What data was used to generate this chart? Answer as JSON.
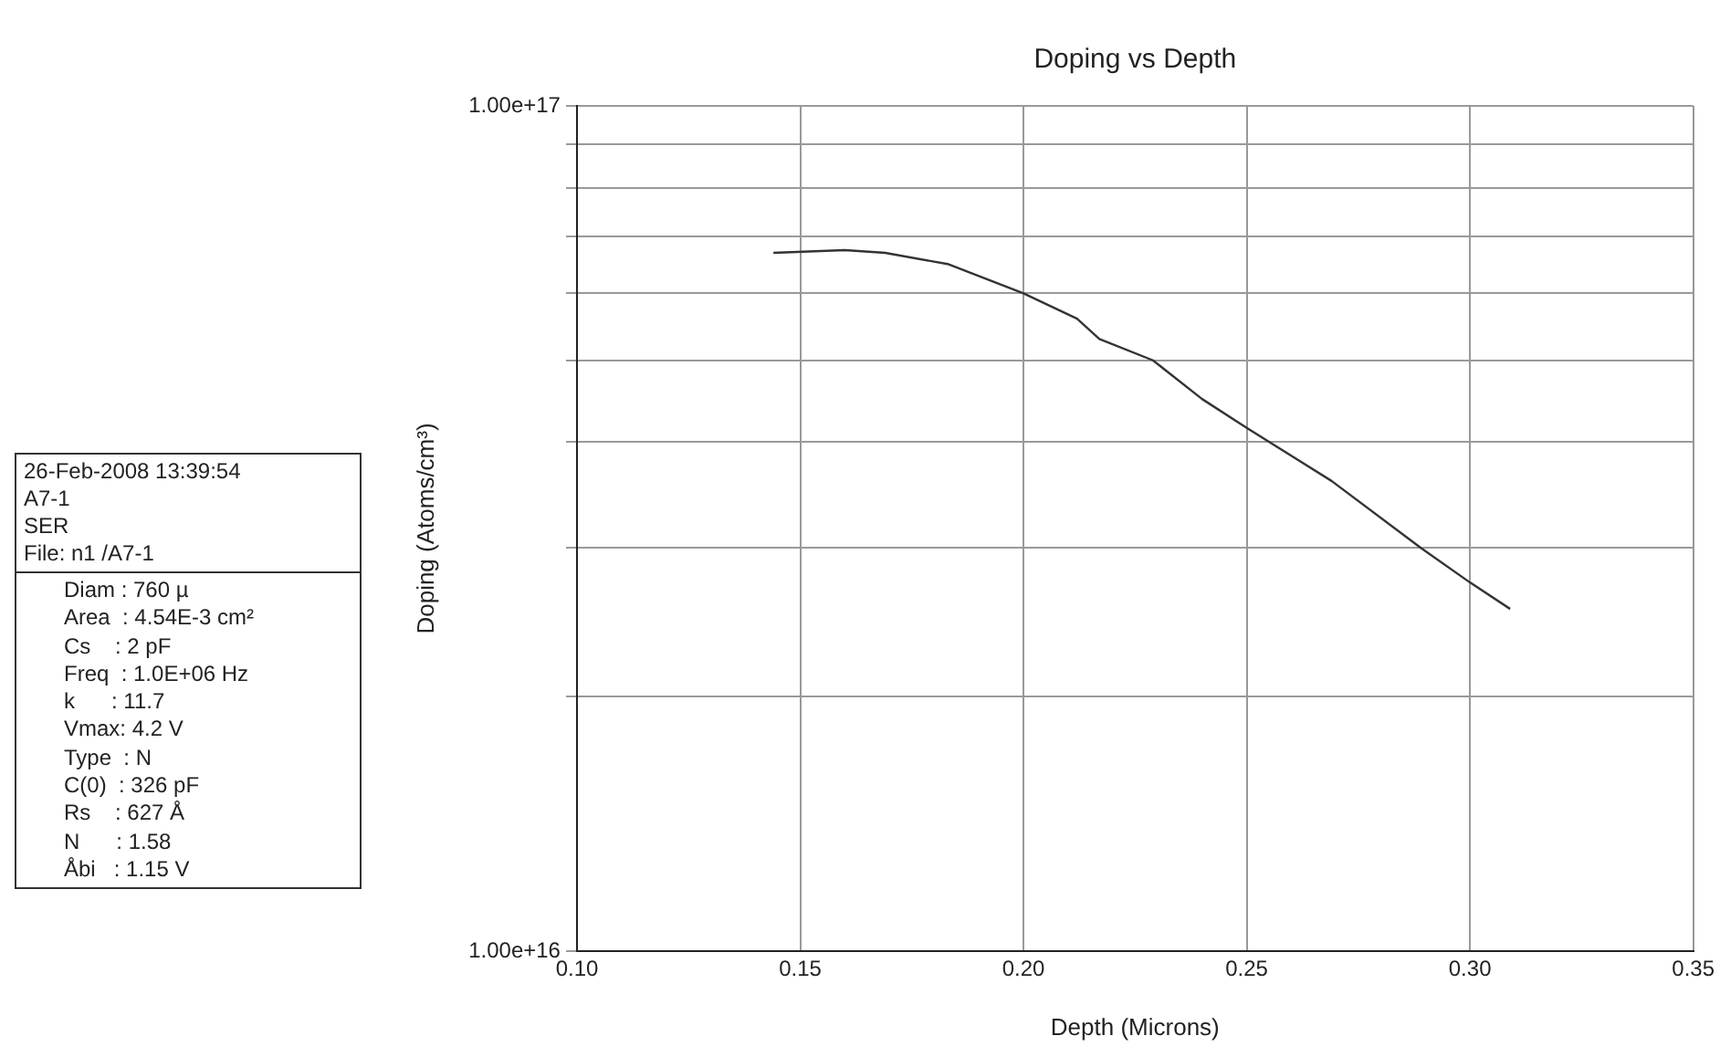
{
  "chart_data": {
    "type": "line",
    "title": "Doping vs Depth",
    "xlabel": "Depth (Microns)",
    "ylabel": "Doping (Atoms/cm³)",
    "log": "y",
    "grid": true,
    "marker": "none",
    "line_style": "solid",
    "legend": false,
    "xlim": [
      0.1,
      0.35
    ],
    "xticks": [
      {
        "value": 0.1,
        "label": "0.10"
      },
      {
        "value": 0.15,
        "label": "0.15"
      },
      {
        "value": 0.2,
        "label": "0.20"
      },
      {
        "value": 0.25,
        "label": "0.25"
      },
      {
        "value": 0.3,
        "label": "0.30"
      },
      {
        "value": 0.35,
        "label": "0.35"
      }
    ],
    "ylim": [
      1e+16,
      1e+17
    ],
    "yticks": [
      {
        "value": 1e+16,
        "label": "1.00e+16"
      },
      {
        "value": 2e+16,
        "label": null
      },
      {
        "value": 3e+16,
        "label": null
      },
      {
        "value": 4e+16,
        "label": null
      },
      {
        "value": 5e+16,
        "label": null
      },
      {
        "value": 6e+16,
        "label": null
      },
      {
        "value": 7e+16,
        "label": null
      },
      {
        "value": 8e+16,
        "label": null
      },
      {
        "value": 9e+16,
        "label": null
      },
      {
        "value": 1e+17,
        "label": "1.00e+17"
      }
    ],
    "series": [
      {
        "color": "#333333",
        "x": [
          0.144,
          0.16,
          0.169,
          0.183,
          0.2,
          0.212,
          0.217,
          0.229,
          0.24,
          0.25,
          0.269,
          0.289,
          0.3,
          0.309
        ],
        "values": [
          6.7e+16,
          6.75e+16,
          6.7e+16,
          6.5e+16,
          6e+16,
          5.6e+16,
          5.3e+16,
          5e+16,
          4.5e+16,
          4.16e+16,
          3.6e+16,
          3e+16,
          2.73e+16,
          2.54e+16
        ]
      }
    ],
    "annotations": [
      "26-Feb-2008 13:39:54",
      "A7-1",
      "SER",
      "File: n1 /A7-1",
      "Diam : 760 µ",
      "Area  : 4.54E-3 cm²",
      "Cs    : 2 pF",
      "Freq  : 1.0E+06 Hz",
      "k      : 11.7",
      "Vmax: 4.2 V",
      "Type  : N",
      "C(0)  : 326 pF",
      "Rs    : 627 Å",
      "N      : 1.58",
      "Åbi   : 1.15 V"
    ]
  }
}
